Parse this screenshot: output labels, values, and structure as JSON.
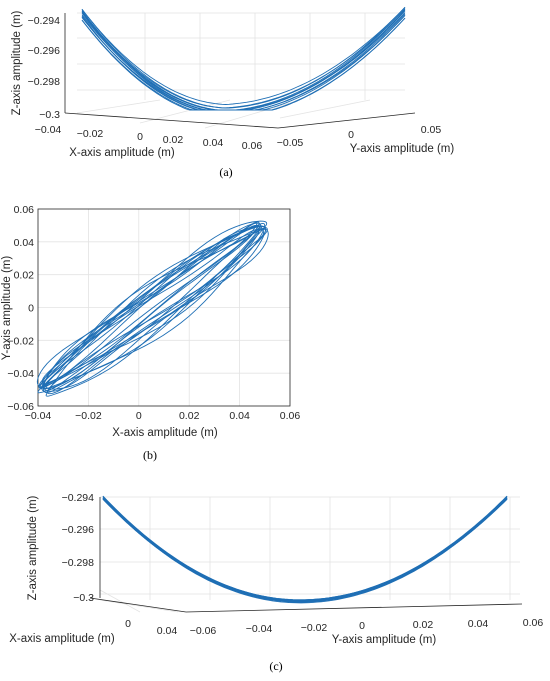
{
  "chart_data": [
    {
      "id": "a",
      "type": "line",
      "view": "3d",
      "caption": "(a)",
      "xlabel": "X-axis amplitude (m)",
      "ylabel": "Y-axis amplitude (m)",
      "zlabel": "Z-axis amplitude (m)",
      "xlim": [
        -0.04,
        0.06
      ],
      "ylim": [
        -0.05,
        0.05
      ],
      "zlim": [
        -0.3,
        -0.294
      ],
      "xticks": [
        "-0.04",
        "-0.02",
        "0",
        "0.02",
        "0.04",
        "0.06"
      ],
      "yticks": [
        "-0.05",
        "0",
        "0.05"
      ],
      "zticks": [
        "-0.294",
        "-0.296",
        "-0.298",
        "-0.3"
      ],
      "grid": true,
      "color": "#1f6fb5",
      "series_shape": {
        "description_values": "trajectory along a bowl: z ranges from about -0.2999 at the bottom to about -0.2936 at the ends",
        "x_range": [
          -0.04,
          0.05
        ],
        "y_range": [
          -0.056,
          0.052
        ],
        "z_range": [
          -0.2999,
          -0.2936
        ]
      }
    },
    {
      "id": "b",
      "type": "line",
      "view": "2d",
      "caption": "(b)",
      "xlabel": "X-axis amplitude (m)",
      "ylabel": "Y-axis amplitude (m)",
      "xlim": [
        -0.04,
        0.06
      ],
      "ylim": [
        -0.06,
        0.06
      ],
      "xticks": [
        "-0.04",
        "-0.02",
        "0",
        "0.02",
        "0.04",
        "0.06"
      ],
      "yticks": [
        "0.06",
        "0.04",
        "0.02",
        "0",
        "-0.02",
        "-0.04",
        "-0.06"
      ],
      "grid": true,
      "color": "#1f6fb5",
      "series_shape": {
        "x_range": [
          -0.04,
          0.05
        ],
        "y_range": [
          -0.056,
          0.052
        ]
      }
    },
    {
      "id": "c",
      "type": "line",
      "view": "3d",
      "caption": "(c)",
      "xlabel": "X-axis amplitude (m)",
      "ylabel": "Y-axis amplitude (m)",
      "zlabel": "Z-axis amplitude (m)",
      "xlim": [
        -0.06,
        0.06
      ],
      "ylim": [
        -0.06,
        0.06
      ],
      "zlim": [
        -0.3,
        -0.294
      ],
      "xticks": [
        "0",
        "0.04"
      ],
      "yticks": [
        "-0.06",
        "-0.04",
        "-0.02",
        "0",
        "0.02",
        "0.04",
        "0.06"
      ],
      "zticks": [
        "-0.294",
        "-0.296",
        "-0.298",
        "-0.3"
      ],
      "grid": true,
      "color": "#1f6fb5"
    }
  ]
}
